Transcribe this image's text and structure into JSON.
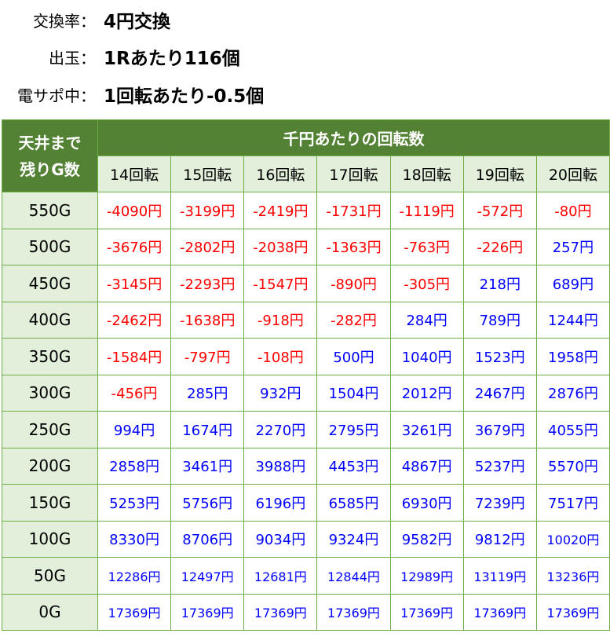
{
  "info": [
    {
      "label": "交換率：",
      "value": "4円交換"
    },
    {
      "label": "出玉：",
      "value": "1Rあたり116個"
    },
    {
      "label": "電サポ中：",
      "value": "1回転あたり-0.5個"
    }
  ],
  "table": {
    "corner_line1": "天井まで",
    "corner_line2": "残りG数",
    "group_header": "千円あたりの回転数",
    "columns": [
      "14回転",
      "15回転",
      "16回転",
      "17回転",
      "18回転",
      "19回転",
      "20回転"
    ],
    "colors": {
      "negative": "#ff0000",
      "positive": "#0000ff",
      "header_bg": "#548235",
      "sub_bg": "#e2efda",
      "border": "#70ad47"
    },
    "rows": [
      {
        "label": "550G",
        "values": [
          "-4090円",
          "-3199円",
          "-2419円",
          "-1731円",
          "-1119円",
          "-572円",
          "-80円"
        ]
      },
      {
        "label": "500G",
        "values": [
          "-3676円",
          "-2802円",
          "-2038円",
          "-1363円",
          "-763円",
          "-226円",
          "257円"
        ]
      },
      {
        "label": "450G",
        "values": [
          "-3145円",
          "-2293円",
          "-1547円",
          "-890円",
          "-305円",
          "218円",
          "689円"
        ]
      },
      {
        "label": "400G",
        "values": [
          "-2462円",
          "-1638円",
          "-918円",
          "-282円",
          "284円",
          "789円",
          "1244円"
        ]
      },
      {
        "label": "350G",
        "values": [
          "-1584円",
          "-797円",
          "-108円",
          "500円",
          "1040円",
          "1523円",
          "1958円"
        ]
      },
      {
        "label": "300G",
        "values": [
          "-456円",
          "285円",
          "932円",
          "1504円",
          "2012円",
          "2467円",
          "2876円"
        ]
      },
      {
        "label": "250G",
        "values": [
          "994円",
          "1674円",
          "2270円",
          "2795円",
          "3261円",
          "3679円",
          "4055円"
        ]
      },
      {
        "label": "200G",
        "values": [
          "2858円",
          "3461円",
          "3988円",
          "4453円",
          "4867円",
          "5237円",
          "5570円"
        ]
      },
      {
        "label": "150G",
        "values": [
          "5253円",
          "5756円",
          "6196円",
          "6585円",
          "6930円",
          "7239円",
          "7517円"
        ]
      },
      {
        "label": "100G",
        "values": [
          "8330円",
          "8706円",
          "9034円",
          "9324円",
          "9582円",
          "9812円",
          "10020円"
        ]
      },
      {
        "label": "50G",
        "values": [
          "12286円",
          "12497円",
          "12681円",
          "12844円",
          "12989円",
          "13119円",
          "13236円"
        ]
      },
      {
        "label": "0G",
        "values": [
          "17369円",
          "17369円",
          "17369円",
          "17369円",
          "17369円",
          "17369円",
          "17369円"
        ]
      }
    ]
  }
}
